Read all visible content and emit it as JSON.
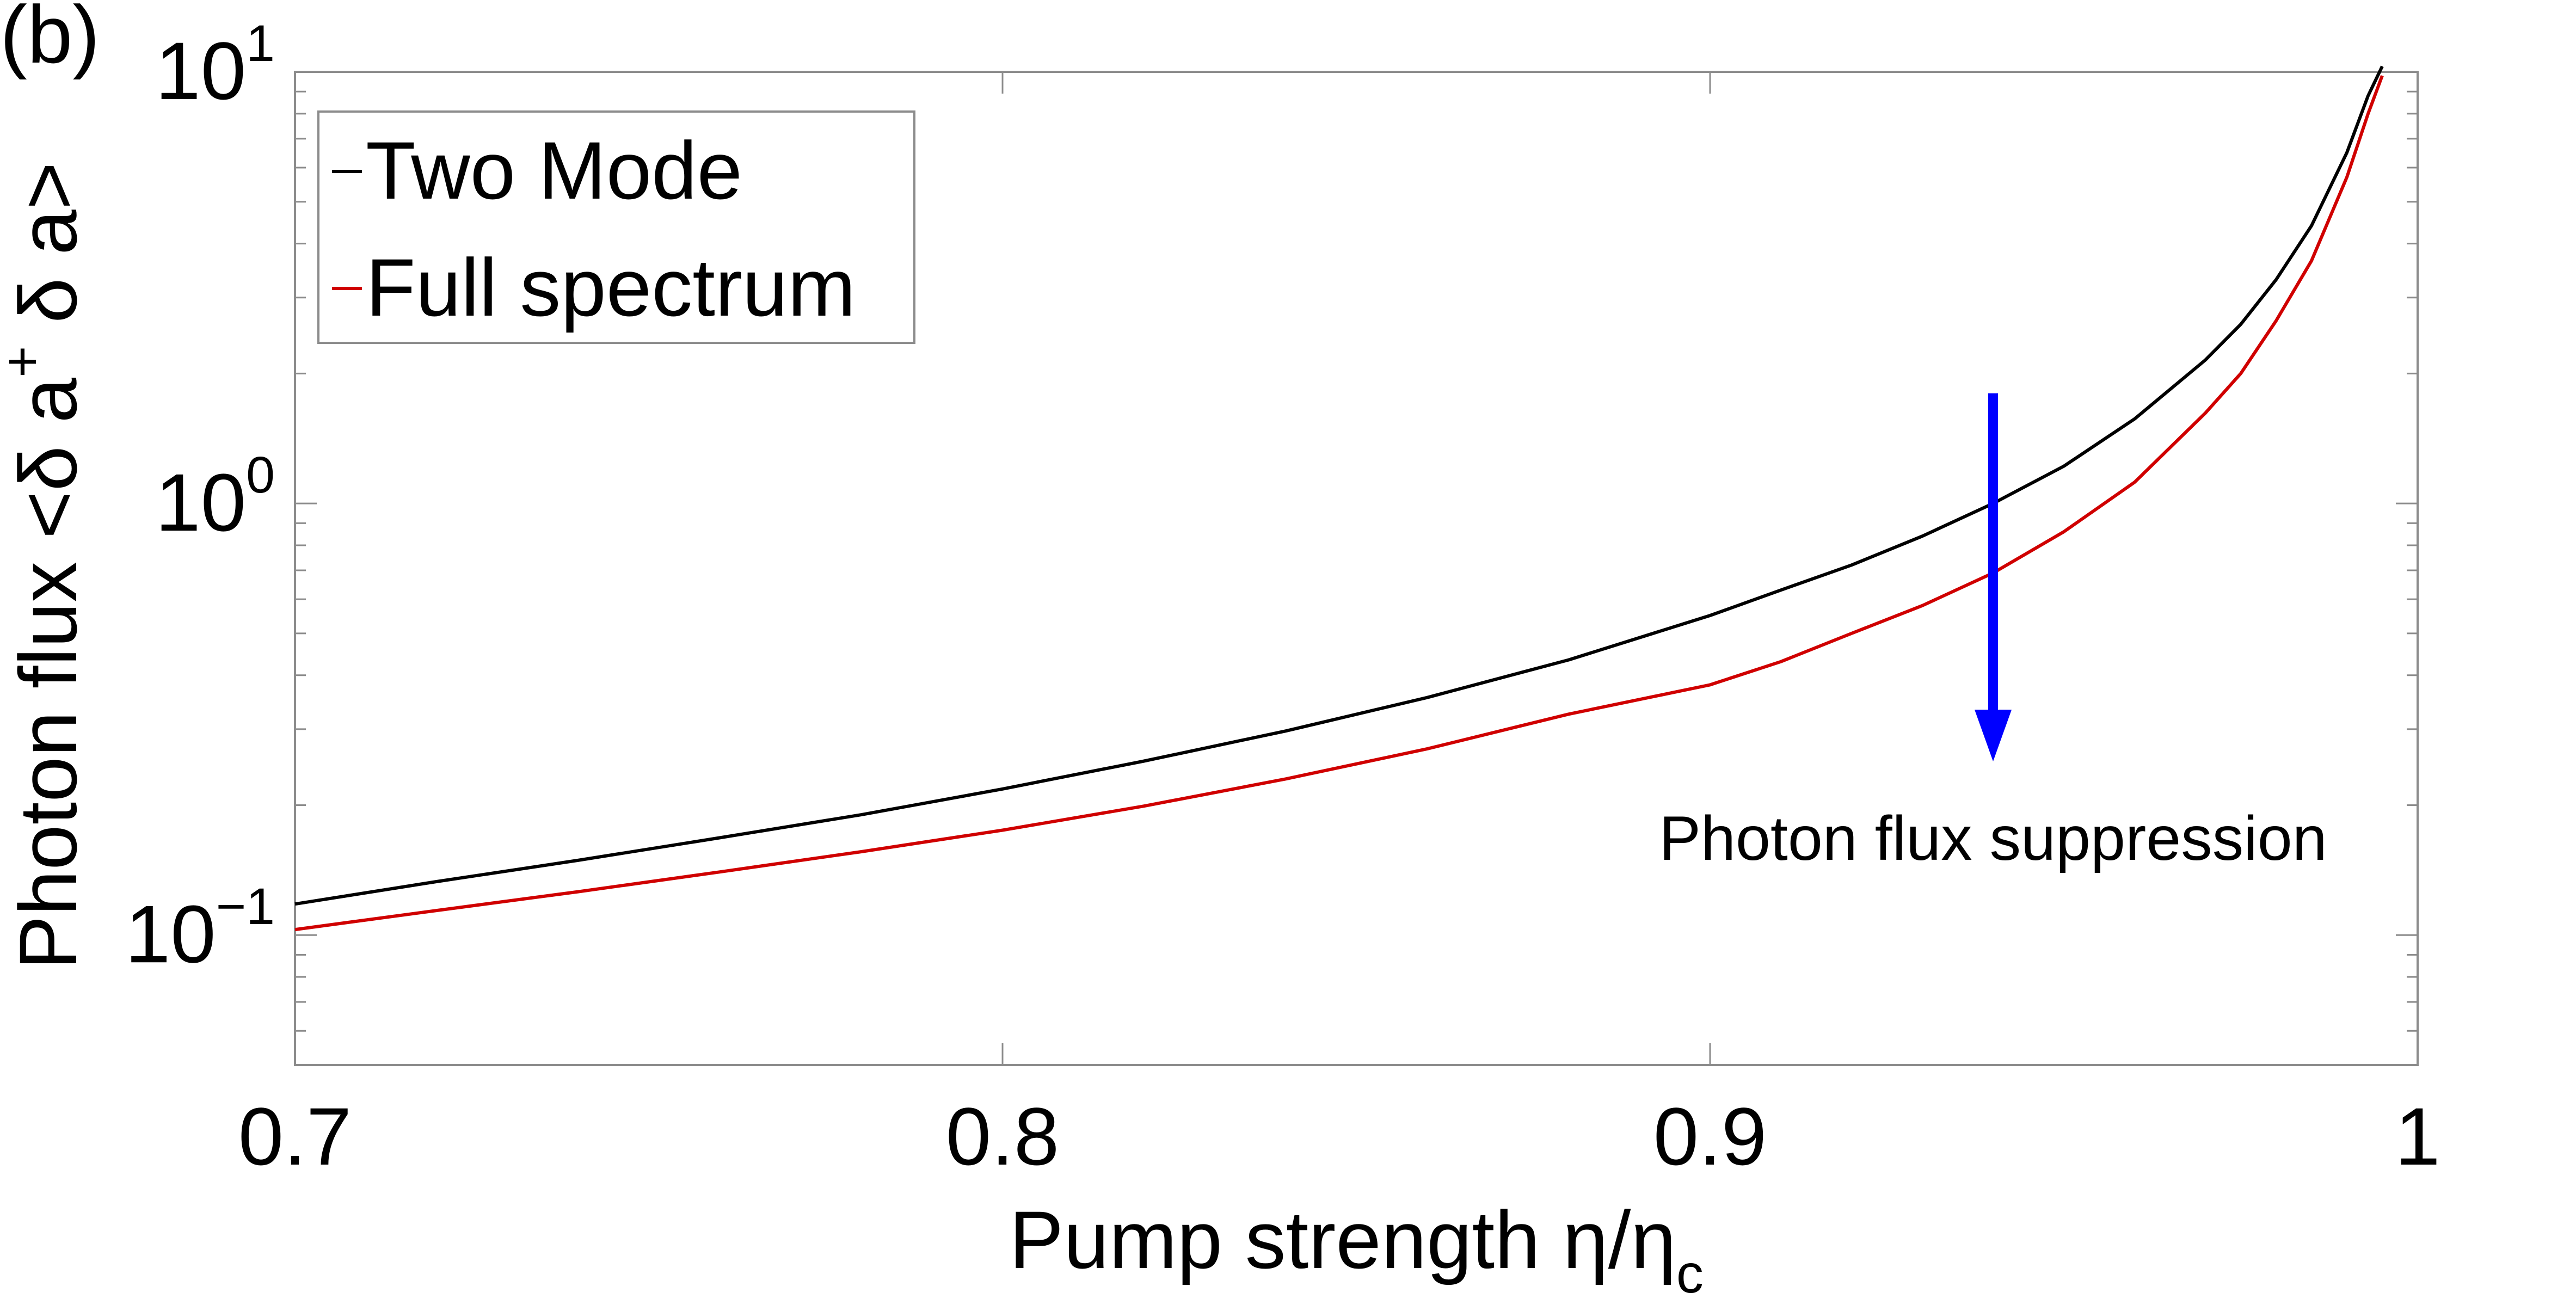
{
  "panel_label": "(b)",
  "colors": {
    "two_mode": "#000000",
    "full_spectrum": "#d00000",
    "arrow": "#0000ff",
    "axes": "#000000",
    "legend_border": "#8c8c8c"
  },
  "chart_data": {
    "type": "line",
    "xlabel_main": "Pump strength η/η",
    "xlabel_sub": "c",
    "ylabel": "Photon flux <δ a",
    "ylabel_sup": "+",
    "ylabel_tail": " δ a>",
    "xlim": [
      0.7,
      1.0
    ],
    "ylim": [
      0.05,
      10
    ],
    "yscale": "log",
    "x_ticks": [
      "0.7",
      "0.8",
      "0.9",
      "1"
    ],
    "y_ticks": [
      {
        "value": 0.1,
        "base": "10",
        "exp": "−1"
      },
      {
        "value": 1,
        "base": "10",
        "exp": "0"
      },
      {
        "value": 10,
        "base": "10",
        "exp": "1"
      }
    ],
    "legend": {
      "placement": "top-left",
      "entries": [
        "Two Mode",
        "Full spectrum"
      ]
    },
    "series": [
      {
        "name": "Two Mode",
        "x": [
          0.7,
          0.72,
          0.74,
          0.76,
          0.78,
          0.8,
          0.82,
          0.84,
          0.86,
          0.88,
          0.9,
          0.91,
          0.92,
          0.93,
          0.94,
          0.95,
          0.96,
          0.97,
          0.975,
          0.98,
          0.985,
          0.99,
          0.993,
          0.995
        ],
        "y": [
          0.118,
          0.133,
          0.149,
          0.168,
          0.19,
          0.218,
          0.253,
          0.297,
          0.355,
          0.434,
          0.55,
          0.63,
          0.72,
          0.84,
          1.0,
          1.22,
          1.57,
          2.15,
          2.6,
          3.3,
          4.4,
          6.5,
          8.8,
          10.3
        ]
      },
      {
        "name": "Full spectrum",
        "x": [
          0.7,
          0.72,
          0.74,
          0.76,
          0.78,
          0.8,
          0.82,
          0.84,
          0.86,
          0.88,
          0.9,
          0.91,
          0.92,
          0.93,
          0.94,
          0.95,
          0.96,
          0.97,
          0.975,
          0.98,
          0.985,
          0.99,
          0.993,
          0.995
        ],
        "y": [
          0.103,
          0.114,
          0.126,
          0.14,
          0.156,
          0.175,
          0.199,
          0.23,
          0.27,
          0.325,
          0.38,
          0.43,
          0.5,
          0.58,
          0.69,
          0.86,
          1.12,
          1.62,
          2.0,
          2.65,
          3.65,
          5.7,
          8.0,
          9.8
        ]
      }
    ],
    "annotation": {
      "text": "Photon flux suppression",
      "arrow_x": 0.94,
      "arrow_y_start": 1.8,
      "arrow_y_end": 0.26
    }
  }
}
